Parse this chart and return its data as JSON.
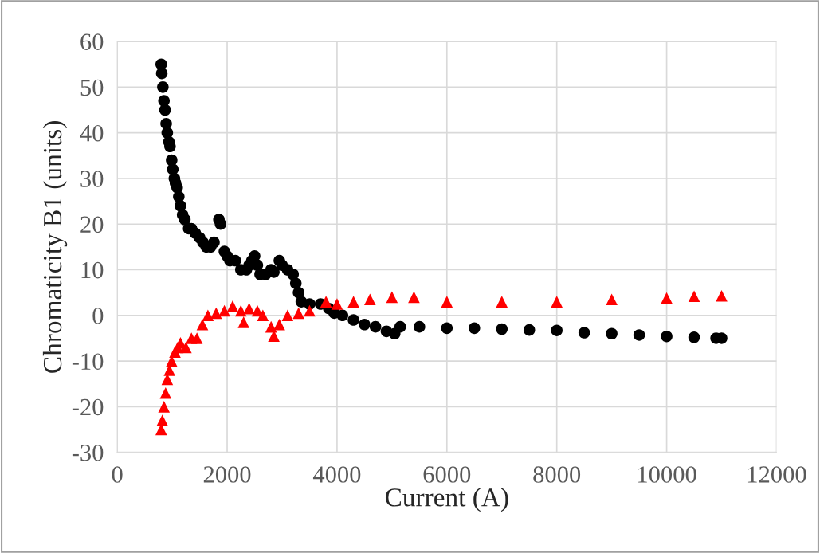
{
  "chart_data": {
    "type": "scatter",
    "xlabel": "Current (A)",
    "ylabel": "Chromaticity B1 (units)",
    "xlim": [
      0,
      12000
    ],
    "xticks": [
      0,
      2000,
      4000,
      6000,
      8000,
      10000,
      12000
    ],
    "ylim": [
      -30,
      60
    ],
    "yticks": [
      -30,
      -20,
      -10,
      0,
      10,
      20,
      30,
      40,
      50,
      60
    ],
    "grid": true,
    "legend": false,
    "series": [
      {
        "color": "#000000",
        "marker": "circle",
        "x": [
          800,
          810,
          830,
          850,
          870,
          890,
          910,
          940,
          960,
          990,
          1010,
          1040,
          1060,
          1090,
          1120,
          1150,
          1190,
          1230,
          1300,
          1350,
          1420,
          1500,
          1560,
          1620,
          1700,
          1760,
          1850,
          1880,
          1950,
          2000,
          2050,
          2150,
          2250,
          2350,
          2400,
          2450,
          2500,
          2550,
          2600,
          2700,
          2800,
          2850,
          2950,
          3000,
          3100,
          3200,
          3250,
          3300,
          3350,
          3500,
          3700,
          3850,
          3950,
          4100,
          4300,
          4500,
          4700,
          4900,
          5050,
          5150,
          5500,
          6000,
          6500,
          7000,
          7500,
          8000,
          8500,
          9000,
          9500,
          10000,
          10500,
          10900,
          11000
        ],
        "values": [
          55,
          53,
          50,
          47,
          45,
          42,
          40,
          38,
          37,
          34,
          32,
          30,
          29,
          28,
          26,
          24,
          22,
          21,
          19,
          19,
          18,
          17,
          16,
          15,
          15,
          16,
          21,
          20,
          14,
          13,
          12,
          12,
          10,
          10,
          11,
          12,
          13,
          11,
          9,
          9,
          10,
          9.5,
          12,
          11,
          10,
          9,
          7,
          5,
          3,
          2.5,
          2.5,
          1.5,
          0.5,
          0,
          -1,
          -2,
          -2.5,
          -3.5,
          -4,
          -2.5,
          -2.5,
          -2.8,
          -2.8,
          -3,
          -3.2,
          -3.3,
          -3.8,
          -4,
          -4.3,
          -4.6,
          -4.8,
          -5,
          -5
        ]
      },
      {
        "color": "#ff0000",
        "marker": "triangle",
        "x": [
          800,
          820,
          850,
          880,
          910,
          950,
          990,
          1050,
          1100,
          1150,
          1250,
          1350,
          1450,
          1550,
          1650,
          1800,
          1950,
          2100,
          2250,
          2300,
          2400,
          2550,
          2650,
          2800,
          2850,
          2950,
          3100,
          3300,
          3500,
          3800,
          4000,
          4300,
          4600,
          5000,
          5400,
          6000,
          7000,
          8000,
          9000,
          10000,
          10500,
          11000
        ],
        "values": [
          -25,
          -23,
          -20,
          -17,
          -14,
          -12,
          -10,
          -8,
          -7,
          -6,
          -7,
          -5,
          -5,
          -2,
          0,
          0.5,
          1,
          2,
          1,
          -1.5,
          1.5,
          1,
          0,
          -2.5,
          -4.5,
          -2,
          0,
          0.5,
          1,
          3,
          2.5,
          3,
          3.5,
          4,
          4,
          3,
          3,
          3,
          3.5,
          3.8,
          4.2,
          4.3
        ]
      }
    ]
  }
}
